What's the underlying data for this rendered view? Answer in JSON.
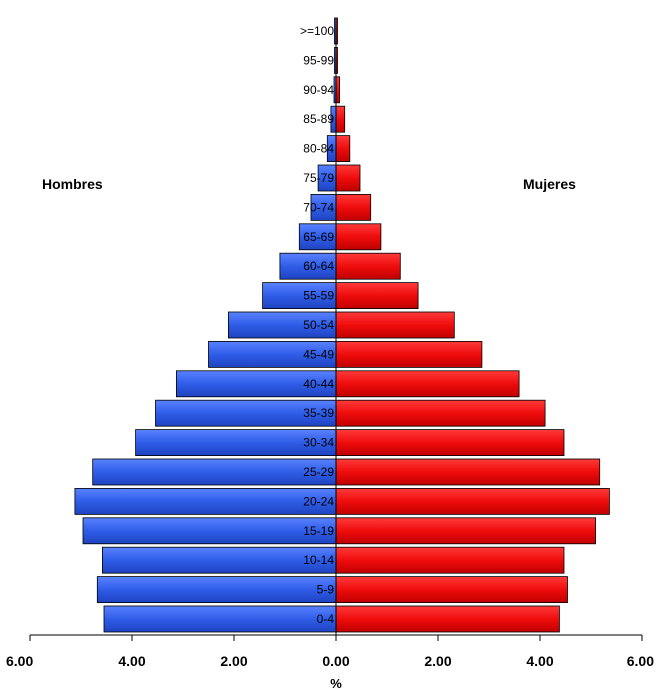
{
  "chart_data": {
    "type": "bar",
    "orientation": "horizontal-pyramid",
    "categories": [
      "0-4",
      "5-9",
      "10-14",
      "15-19",
      "20-24",
      "25-29",
      "30-34",
      "35-39",
      "40-44",
      "45-49",
      "50-54",
      "55-59",
      "60-64",
      "65-69",
      "70-74",
      "75-79",
      "80-84",
      "85-89",
      "90-94",
      "95-99",
      ">=100"
    ],
    "series": [
      {
        "name": "Hombres",
        "side": "left",
        "color": "#2f5de8",
        "values": [
          4.55,
          4.68,
          4.58,
          4.96,
          5.12,
          4.77,
          3.93,
          3.54,
          3.13,
          2.5,
          2.11,
          1.44,
          1.1,
          0.72,
          0.49,
          0.35,
          0.17,
          0.1,
          0.04,
          0.02,
          0.01
        ]
      },
      {
        "name": "Mujeres",
        "side": "right",
        "color": "#ef0c0c",
        "values": [
          4.38,
          4.54,
          4.47,
          5.09,
          5.36,
          5.17,
          4.47,
          4.1,
          3.59,
          2.86,
          2.32,
          1.61,
          1.26,
          0.88,
          0.68,
          0.47,
          0.27,
          0.17,
          0.07,
          0.03,
          0.01
        ]
      }
    ],
    "xaxis": {
      "ticks": [
        "6.00",
        "4.00",
        "2.00",
        "0.00",
        "2.00",
        "4.00",
        "6.00"
      ],
      "range": [
        -6,
        6
      ],
      "label": "%"
    },
    "grid": false,
    "legend": "none"
  }
}
